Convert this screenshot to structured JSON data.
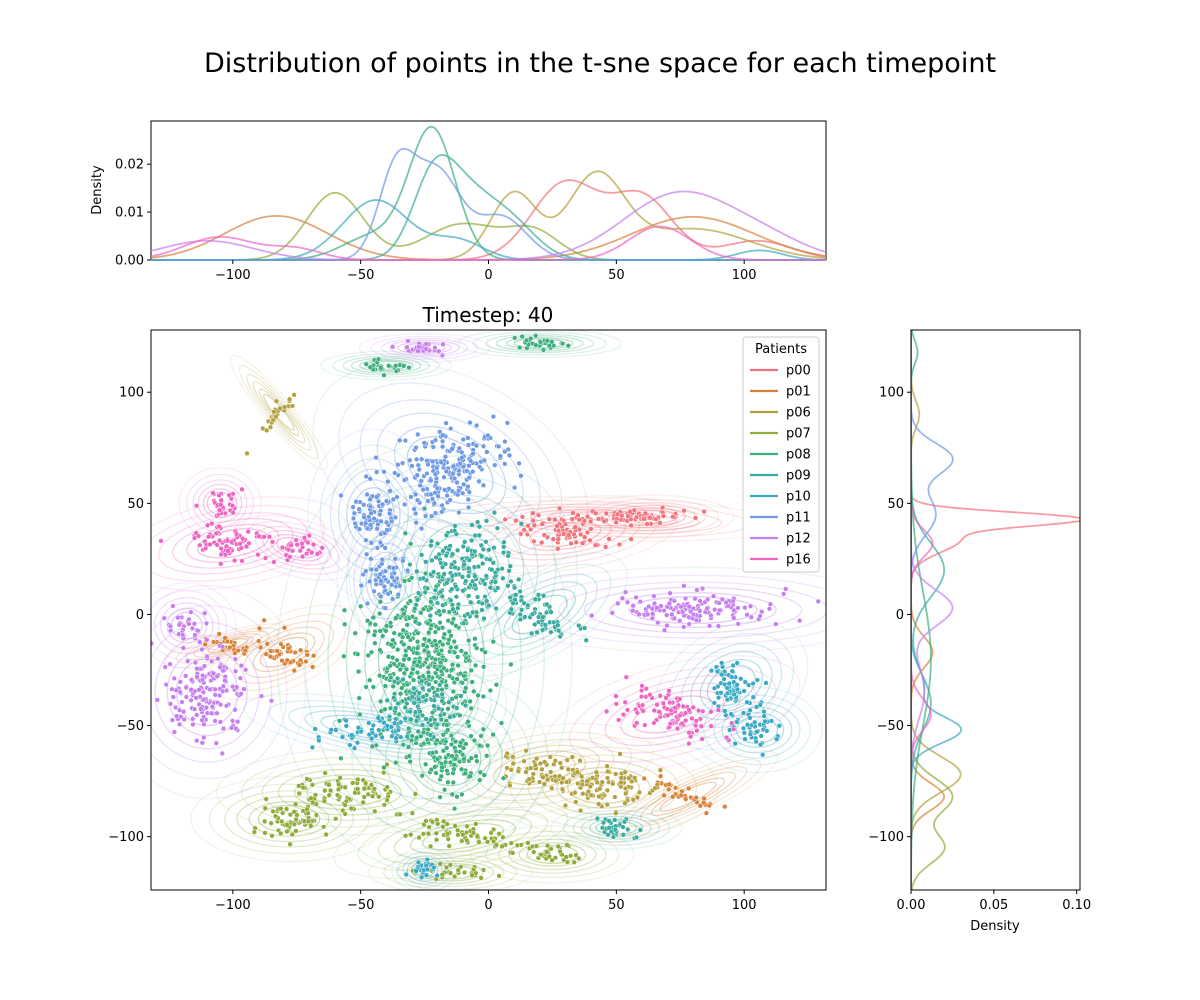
{
  "figure": {
    "title": "Distribution of points in the t-sne space for each timepoint"
  },
  "chart_data": [
    {
      "name": "top-marginal-density",
      "type": "line",
      "ylabel": "Density",
      "xlabel": "",
      "xlim": [
        -132,
        132
      ],
      "ylim": [
        0,
        0.029
      ],
      "xticks": [
        "−100",
        "−50",
        "0",
        "50",
        "100"
      ],
      "xtick_values": [
        -100,
        -50,
        0,
        50,
        100
      ],
      "yticks": [
        "0.00",
        "0.01",
        "0.02"
      ],
      "ytick_values": [
        0,
        0.01,
        0.02
      ],
      "grid": false,
      "series": [
        {
          "name": "p00",
          "peaks": [
            [
              30,
              0.016,
              13
            ],
            [
              60,
              0.013,
              12
            ],
            [
              105,
              0.004,
              14
            ]
          ]
        },
        {
          "name": "p01",
          "peaks": [
            [
              -83,
              0.0092,
              20
            ],
            [
              80,
              0.009,
              24
            ]
          ]
        },
        {
          "name": "p06",
          "peaks": [
            [
              10,
              0.014,
              9
            ],
            [
              42,
              0.017,
              11
            ],
            [
              80,
              0.0065,
              22
            ]
          ]
        },
        {
          "name": "p07",
          "peaks": [
            [
              -60,
              0.014,
              11
            ],
            [
              -10,
              0.0075,
              15
            ],
            [
              18,
              0.0055,
              10
            ]
          ]
        },
        {
          "name": "p08",
          "peaks": [
            [
              -22,
              0.027,
              9
            ],
            [
              -45,
              0.005,
              12
            ]
          ]
        },
        {
          "name": "p09",
          "peaks": [
            [
              -22,
              0.012,
              8
            ],
            [
              -10,
              0.014,
              12
            ],
            [
              10,
              0.006,
              10
            ]
          ]
        },
        {
          "name": "p10",
          "peaks": [
            [
              -44,
              0.0125,
              13
            ],
            [
              -12,
              0.004,
              10
            ],
            [
              106,
              0.002,
              9
            ]
          ]
        },
        {
          "name": "p11",
          "peaks": [
            [
              -36,
              0.0185,
              7
            ],
            [
              -20,
              0.018,
              9
            ],
            [
              5,
              0.009,
              10
            ]
          ]
        },
        {
          "name": "p12",
          "peaks": [
            [
              -110,
              0.004,
              18
            ],
            [
              75,
              0.014,
              22
            ],
            [
              110,
              0.003,
              16
            ]
          ]
        },
        {
          "name": "p16",
          "peaks": [
            [
              -105,
              0.0048,
              14
            ],
            [
              -75,
              0.0022,
              10
            ],
            [
              67,
              0.007,
              12
            ]
          ]
        }
      ]
    },
    {
      "name": "main-scatter",
      "type": "scatter",
      "title": "Timestep: 40",
      "xlabel": "",
      "ylabel": "",
      "xlim": [
        -132,
        132
      ],
      "ylim": [
        -124,
        128
      ],
      "xticks": [
        "−100",
        "−50",
        "0",
        "50",
        "100"
      ],
      "xtick_values": [
        -100,
        -50,
        0,
        50,
        100
      ],
      "yticks": [
        "−100",
        "−50",
        "0",
        "50",
        "100"
      ],
      "ytick_values": [
        -100,
        -50,
        0,
        50,
        100
      ],
      "grid": false,
      "legend": {
        "title": "Patients",
        "placement": "top-right",
        "entries": [
          "p00",
          "p01",
          "p06",
          "p07",
          "p08",
          "p09",
          "p10",
          "p11",
          "p12",
          "p16"
        ]
      },
      "series": [
        {
          "name": "p00",
          "clusters": [
            [
              30,
              36,
              14,
              5,
              -8
            ],
            [
              45,
              43,
              22,
              3,
              2
            ],
            [
              64,
              44,
              10,
              3,
              0
            ]
          ]
        },
        {
          "name": "p01",
          "clusters": [
            [
              -80,
              -17,
              10,
              5,
              -25
            ],
            [
              -102,
              -14,
              8,
              2,
              -15
            ],
            [
              78,
              -82,
              12,
              3,
              -25
            ]
          ]
        },
        {
          "name": "p06",
          "clusters": [
            [
              20,
              -70,
              14,
              6,
              -10
            ],
            [
              45,
              -78,
              14,
              7,
              0
            ],
            [
              -82,
              91,
              9,
              2,
              50
            ]
          ]
        },
        {
          "name": "p07",
          "clusters": [
            [
              -55,
              -80,
              16,
              6,
              0
            ],
            [
              -10,
              -100,
              16,
              5,
              -10
            ],
            [
              25,
              -108,
              10,
              4,
              0
            ],
            [
              -78,
              -92,
              12,
              6,
              0
            ],
            [
              -15,
              -116,
              10,
              3,
              0
            ]
          ]
        },
        {
          "name": "p08",
          "clusters": [
            [
              -25,
              -20,
              18,
              30,
              0
            ],
            [
              -15,
              -65,
              12,
              12,
              0
            ],
            [
              -40,
              112,
              8,
              2,
              0
            ],
            [
              20,
              122,
              10,
              2,
              0
            ]
          ]
        },
        {
          "name": "p09",
          "clusters": [
            [
              -10,
              20,
              14,
              16,
              -40
            ],
            [
              20,
              0,
              12,
              6,
              -30
            ],
            [
              -25,
              -40,
              10,
              8,
              0
            ],
            [
              50,
              -96,
              8,
              3,
              0
            ]
          ]
        },
        {
          "name": "p10",
          "clusters": [
            [
              -45,
              -52,
              16,
              4,
              10
            ],
            [
              95,
              -32,
              10,
              8,
              -30
            ],
            [
              105,
              -52,
              8,
              6,
              0
            ],
            [
              -25,
              -115,
              4,
              3,
              0
            ]
          ]
        },
        {
          "name": "p11",
          "clusters": [
            [
              -15,
              65,
              18,
              13,
              28
            ],
            [
              -45,
              45,
              8,
              12,
              0
            ],
            [
              -40,
              15,
              6,
              10,
              0
            ]
          ]
        },
        {
          "name": "p12",
          "clusters": [
            [
              80,
              2,
              25,
              6,
              0
            ],
            [
              -110,
              -35,
              12,
              15,
              0
            ],
            [
              -118,
              -5,
              6,
              6,
              0
            ],
            [
              -25,
              120,
              8,
              2,
              0
            ]
          ]
        },
        {
          "name": "p16",
          "clusters": [
            [
              -100,
              32,
              14,
              6,
              -10
            ],
            [
              -75,
              30,
              8,
              4,
              15
            ],
            [
              -105,
              50,
              5,
              5,
              0
            ],
            [
              72,
              -45,
              16,
              7,
              -15
            ]
          ]
        }
      ]
    },
    {
      "name": "right-marginal-density",
      "type": "line",
      "xlabel": "Density",
      "ylabel": "",
      "xlim": [
        0,
        0.102
      ],
      "ylim": [
        -124,
        128
      ],
      "xticks": [
        "0.00",
        "0.05",
        "0.10"
      ],
      "xtick_values": [
        0,
        0.05,
        0.1
      ],
      "yticks": [
        "−100",
        "−50",
        "0",
        "50",
        "100"
      ],
      "ytick_values": [
        -100,
        -50,
        0,
        50,
        100
      ],
      "grid": false,
      "series": [
        {
          "name": "p00",
          "peaks": [
            [
              43,
              0.095,
              3
            ],
            [
              34,
              0.03,
              6
            ]
          ]
        },
        {
          "name": "p01",
          "peaks": [
            [
              -17,
              0.013,
              7
            ],
            [
              -82,
              0.02,
              6
            ]
          ]
        },
        {
          "name": "p06",
          "peaks": [
            [
              -72,
              0.03,
              8
            ],
            [
              90,
              0.005,
              6
            ]
          ]
        },
        {
          "name": "p07",
          "peaks": [
            [
              -82,
              0.025,
              8
            ],
            [
              -105,
              0.02,
              7
            ]
          ]
        },
        {
          "name": "p08",
          "peaks": [
            [
              -20,
              0.012,
              30
            ],
            [
              118,
              0.004,
              5
            ]
          ]
        },
        {
          "name": "p09",
          "peaks": [
            [
              20,
              0.02,
              12
            ],
            [
              -40,
              0.012,
              12
            ]
          ]
        },
        {
          "name": "p10",
          "peaks": [
            [
              -52,
              0.03,
              6
            ],
            [
              -32,
              0.008,
              8
            ]
          ]
        },
        {
          "name": "p11",
          "peaks": [
            [
              70,
              0.025,
              7
            ],
            [
              45,
              0.015,
              9
            ]
          ]
        },
        {
          "name": "p12",
          "peaks": [
            [
              3,
              0.025,
              8
            ],
            [
              -35,
              0.008,
              12
            ]
          ]
        },
        {
          "name": "p16",
          "peaks": [
            [
              32,
              0.013,
              6
            ],
            [
              -45,
              0.012,
              7
            ]
          ]
        }
      ]
    }
  ],
  "colors": {
    "p00": "#f2737c",
    "p01": "#d9823a",
    "p06": "#b3a13f",
    "p07": "#8fac3a",
    "p08": "#3caf7c",
    "p09": "#3aab9f",
    "p10": "#3aa9c3",
    "p11": "#6f9ae6",
    "p12": "#c67ff0",
    "p16": "#ed66c4"
  }
}
